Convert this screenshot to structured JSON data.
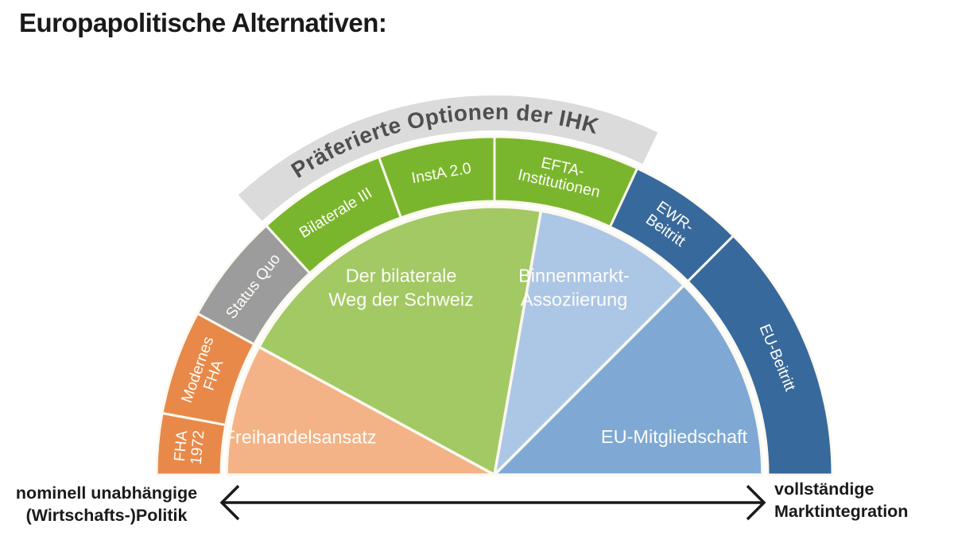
{
  "title": "Europapolitische Alternativen:",
  "colors": {
    "orange": "#E8894A",
    "orange_light": "#F3B387",
    "gray_segment": "#9C9C9C",
    "band_gray": "#DBDBDB",
    "band_text": "#4F4F4F",
    "green": "#7AB62D",
    "green_light": "#A2C963",
    "blue_dark": "#38699C",
    "blue_light": "#ACC6E6",
    "blue_mid": "#7FA9D4",
    "label_text": "#FDFDF8",
    "ink": "#1A1A1A",
    "separator": "#FBF8EF"
  },
  "banner": {
    "label": "Präferierte Optionen der IHK",
    "start_angle": 132.5,
    "end_angle": 64.5
  },
  "ring": [
    {
      "id": "fha-1972",
      "lines": [
        "FHA",
        "1972"
      ],
      "start": 180,
      "end": 169.5,
      "color_key": "orange"
    },
    {
      "id": "modernes-fha",
      "lines": [
        "Modernes",
        "FHA"
      ],
      "start": 169.5,
      "end": 151.5,
      "color_key": "orange"
    },
    {
      "id": "status-quo",
      "lines": [
        "Status Quo"
      ],
      "start": 151.5,
      "end": 132.5,
      "color_key": "gray_segment"
    },
    {
      "id": "bilaterale-iii",
      "lines": [
        "Bilaterale III"
      ],
      "start": 132.5,
      "end": 110,
      "color_key": "green"
    },
    {
      "id": "insta-2-0",
      "lines": [
        "InstA 2.0"
      ],
      "start": 110,
      "end": 90,
      "color_key": "green"
    },
    {
      "id": "efta-institutionen",
      "lines": [
        "EFTA-",
        "Institutionen"
      ],
      "start": 90,
      "end": 65,
      "color_key": "green"
    },
    {
      "id": "ewr-beitritt",
      "lines": [
        "EWR-",
        "Beitritt"
      ],
      "start": 65,
      "end": 45,
      "color_key": "blue_dark"
    },
    {
      "id": "eu-beitritt",
      "lines": [
        "EU-Beitritt"
      ],
      "start": 45,
      "end": 0,
      "color_key": "blue_dark"
    }
  ],
  "sectors": [
    {
      "id": "freihandelsansatz",
      "lines": [
        "Freihandelsansatz"
      ],
      "start": 180,
      "end": 151.5,
      "color_key": "orange_light",
      "label_angle": 169,
      "label_radius": 249
    },
    {
      "id": "bilateraler-weg",
      "lines": [
        "Der bilaterale",
        "Weg der Schweiz"
      ],
      "start": 151.5,
      "end": 80,
      "color_key": "green_light",
      "label_angle": 116.5,
      "label_radius": 263
    },
    {
      "id": "binnenmarkt-assoziierung",
      "lines": [
        "Binnenmarkt-",
        "Assoziierung"
      ],
      "start": 80,
      "end": 45,
      "color_key": "blue_light",
      "label_angle": 67,
      "label_radius": 256
    },
    {
      "id": "eu-mitgliedschaft",
      "lines": [
        "EU-Mitgliedschaft"
      ],
      "start": 45,
      "end": 0,
      "color_key": "blue_mid",
      "label_angle": 12,
      "label_radius": 231
    }
  ],
  "axis": {
    "left_label": "nominell unabhängige\n(Wirtschafts-)Politik",
    "right_label": "vollständige\nMarktintegration"
  }
}
